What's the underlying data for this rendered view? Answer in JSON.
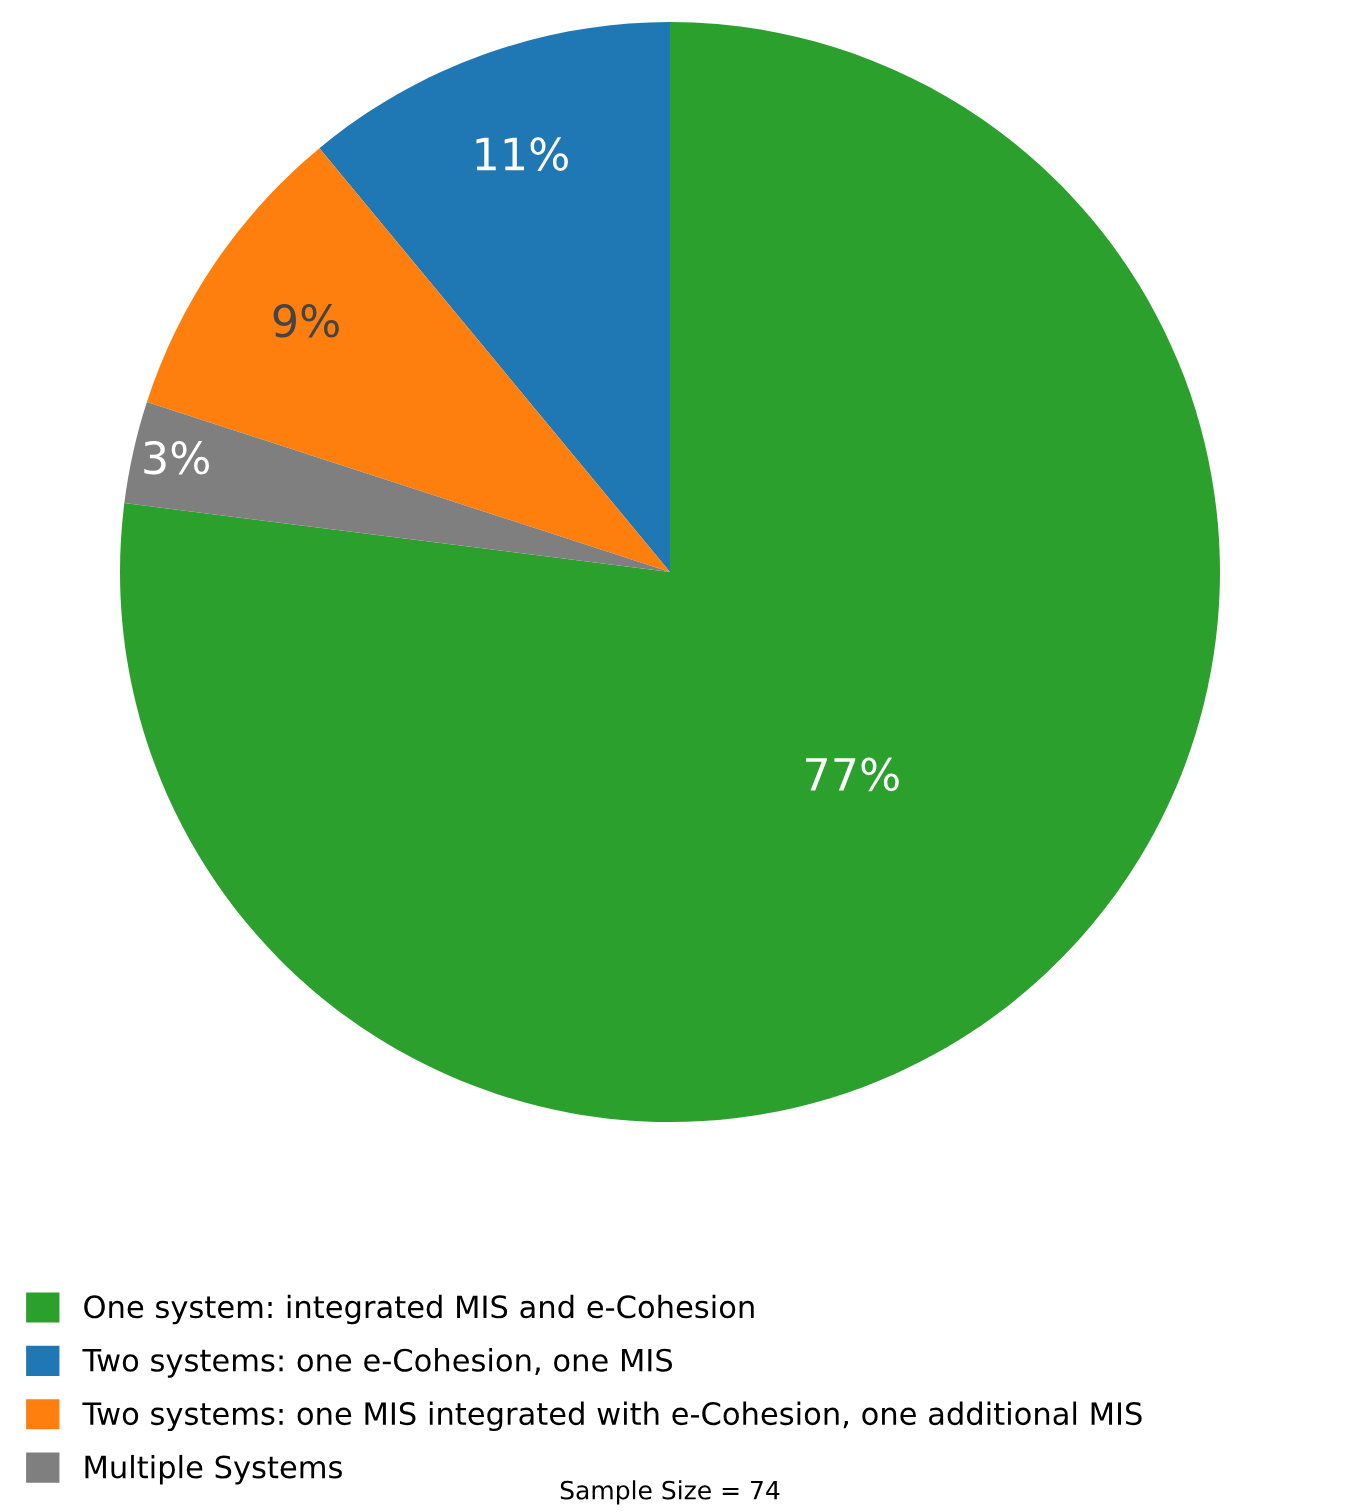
{
  "chart_data": {
    "type": "pie",
    "categories": [
      "One system: integrated MIS and e-Cohesion",
      "Two systems: one e-Cohesion, one MIS",
      "Two systems: one MIS integrated with e-Cohesion, one additional MIS",
      "Multiple Systems"
    ],
    "values": [
      77,
      11,
      9,
      3
    ],
    "colors": [
      "#2ca02c",
      "#1f77b4",
      "#ff7f0e",
      "#7f7f7f"
    ],
    "value_labels": [
      "77%",
      "11%",
      "9%",
      "3%"
    ],
    "legend": "bottom left",
    "annotations": [
      "Sample Size = 74"
    ]
  }
}
